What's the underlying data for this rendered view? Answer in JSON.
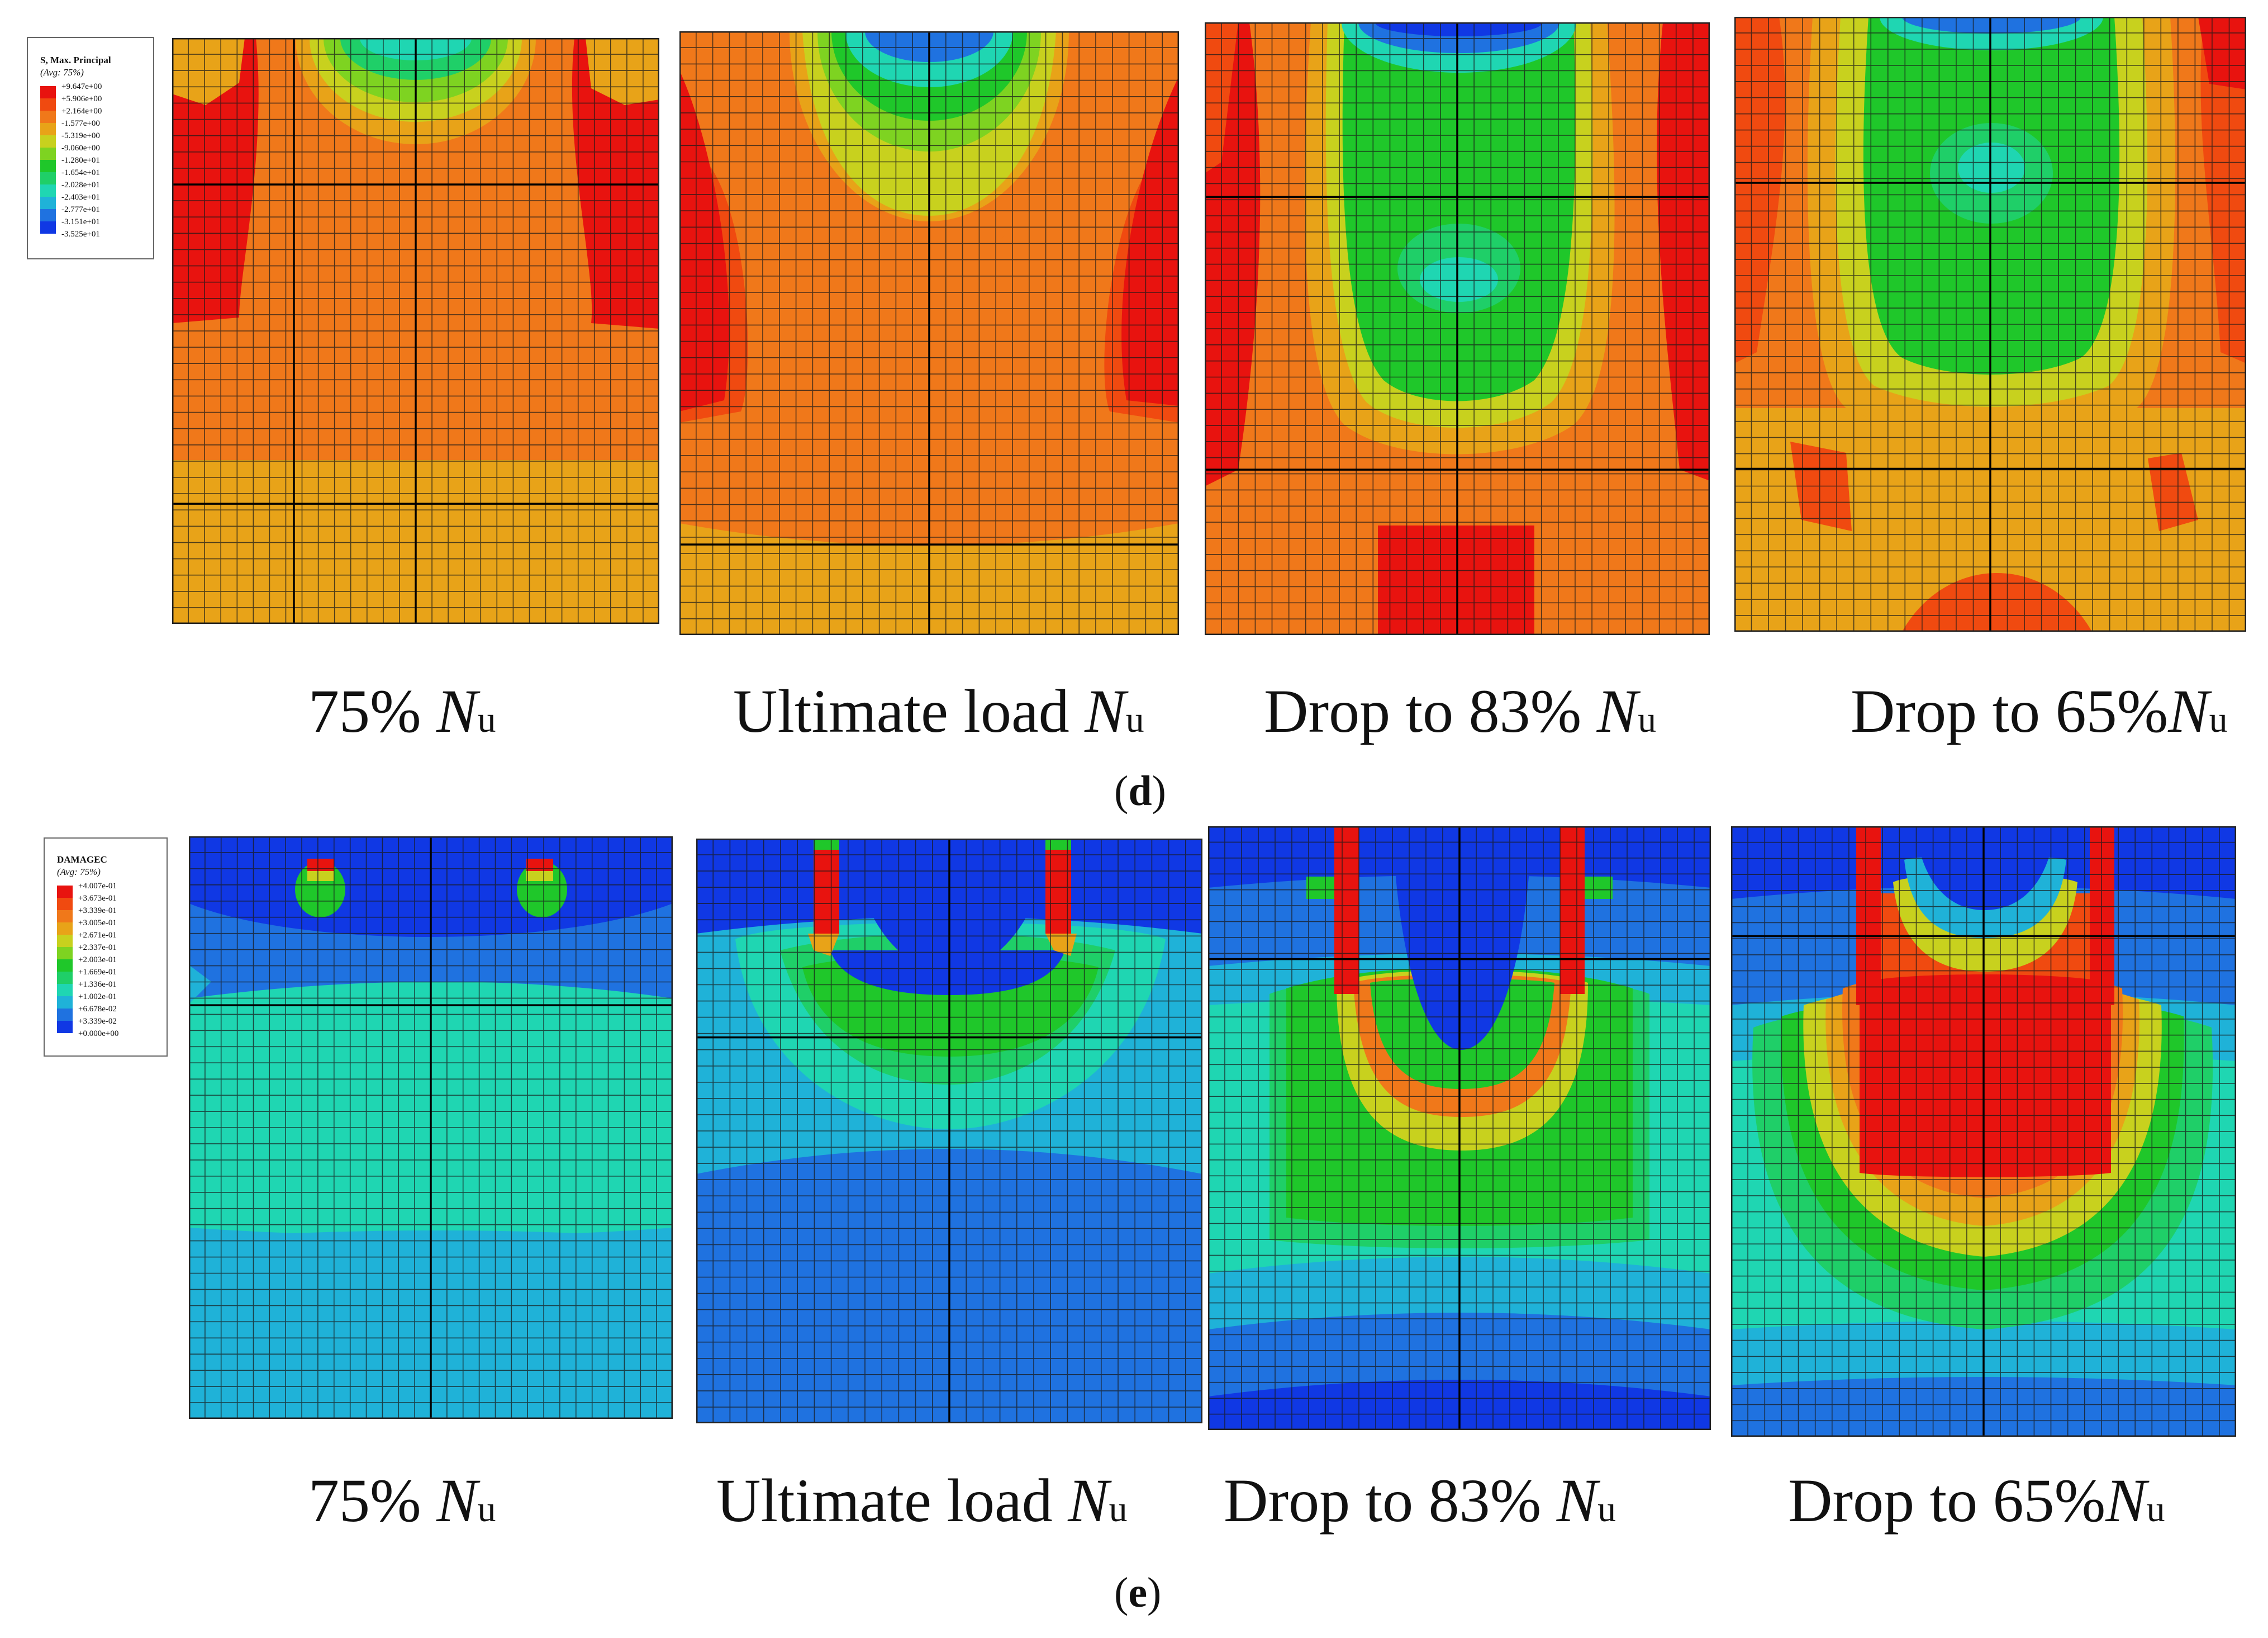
{
  "figure": {
    "panels": [
      {
        "id": "d",
        "label": "d",
        "legend": {
          "title": "S, Max. Principal",
          "subtitle": "(Avg: 75%)",
          "levels": [
            "+9.647e+00",
            "+5.906e+00",
            "+2.164e+00",
            "-1.577e+00",
            "-5.319e+00",
            "-9.060e+00",
            "-1.280e+01",
            "-1.654e+01",
            "-2.028e+01",
            "-2.403e+01",
            "-2.777e+01",
            "-3.151e+01",
            "-3.525e+01"
          ],
          "colors": [
            "#e8130f",
            "#f04a10",
            "#f0781a",
            "#e8a318",
            "#c8d11e",
            "#7ed321",
            "#1fc72a",
            "#1fcf68",
            "#1fd6b2",
            "#1fb2d8",
            "#1f72e0",
            "#1038e4",
            "#0a10c8"
          ]
        },
        "plots": [
          {
            "caption_prefix": "75% ",
            "caption_var": "N",
            "caption_sub": "u"
          },
          {
            "caption_prefix": "Ultimate load ",
            "caption_var": "N",
            "caption_sub": "u"
          },
          {
            "caption_prefix": "Drop to 83% ",
            "caption_var": "N",
            "caption_sub": "u"
          },
          {
            "caption_prefix": "Drop to 65%",
            "caption_var": "N",
            "caption_sub": "u"
          }
        ]
      },
      {
        "id": "e",
        "label": "e",
        "legend": {
          "title": "DAMAGEC",
          "subtitle": "(Avg: 75%)",
          "levels": [
            "+4.007e-01",
            "+3.673e-01",
            "+3.339e-01",
            "+3.005e-01",
            "+2.671e-01",
            "+2.337e-01",
            "+2.003e-01",
            "+1.669e-01",
            "+1.336e-01",
            "+1.002e-01",
            "+6.678e-02",
            "+3.339e-02",
            "+0.000e+00"
          ],
          "colors": [
            "#e8130f",
            "#f04a10",
            "#f0781a",
            "#e8a318",
            "#c8d11e",
            "#7ed321",
            "#1fc72a",
            "#1fcf68",
            "#1fd6b2",
            "#1fb2d8",
            "#1f72e0",
            "#1038e4",
            "#0a10c8"
          ]
        },
        "plots": [
          {
            "caption_prefix": "75% ",
            "caption_var": "N",
            "caption_sub": "u"
          },
          {
            "caption_prefix": "Ultimate load ",
            "caption_var": "N",
            "caption_sub": "u"
          },
          {
            "caption_prefix": "Drop to 83% ",
            "caption_var": "N",
            "caption_sub": "u"
          },
          {
            "caption_prefix": "Drop to 65%",
            "caption_var": "N",
            "caption_sub": "u"
          }
        ]
      }
    ]
  }
}
